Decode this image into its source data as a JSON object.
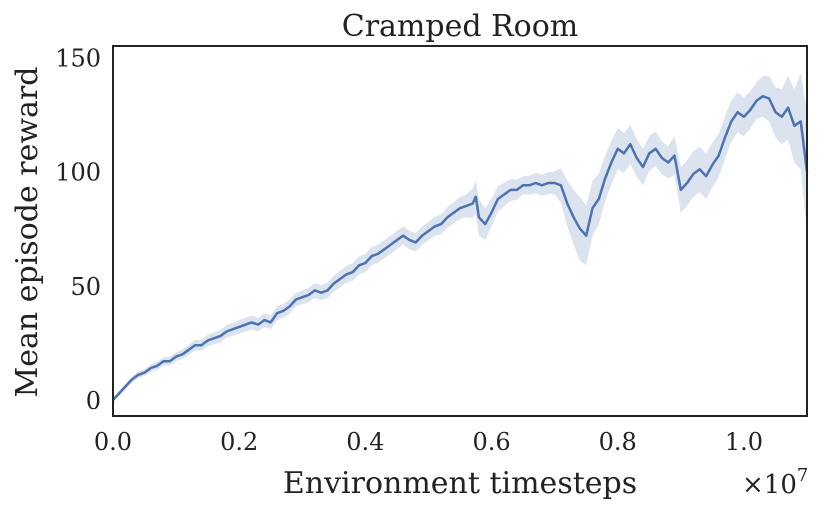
{
  "chart_data": {
    "type": "line",
    "title": "Cramped Room",
    "xlabel": "Environment timesteps",
    "ylabel": "Mean episode reward",
    "x_scale_label_base": "×10",
    "x_scale_label_exp": "7",
    "xlim": [
      0.0,
      1.1
    ],
    "ylim": [
      -7,
      155
    ],
    "xticks": [
      0.0,
      0.2,
      0.4,
      0.6,
      0.8,
      1.0
    ],
    "xtick_labels": [
      "0.0",
      "0.2",
      "0.4",
      "0.6",
      "0.8",
      "1.0"
    ],
    "yticks": [
      0,
      50,
      100,
      150
    ],
    "ytick_labels": [
      "0",
      "50",
      "100",
      "150"
    ],
    "grid": false,
    "series": [
      {
        "color": "#4c72b0",
        "band_color": "#4c72b0",
        "points": [
          [
            0.0,
            0
          ],
          [
            0.01,
            3
          ],
          [
            0.02,
            6
          ],
          [
            0.03,
            9
          ],
          [
            0.04,
            11
          ],
          [
            0.05,
            12
          ],
          [
            0.06,
            14
          ],
          [
            0.07,
            15
          ],
          [
            0.08,
            17
          ],
          [
            0.09,
            17
          ],
          [
            0.1,
            19
          ],
          [
            0.11,
            20
          ],
          [
            0.12,
            22
          ],
          [
            0.13,
            24
          ],
          [
            0.14,
            24
          ],
          [
            0.15,
            26
          ],
          [
            0.16,
            27
          ],
          [
            0.17,
            28
          ],
          [
            0.18,
            30
          ],
          [
            0.19,
            31
          ],
          [
            0.2,
            32
          ],
          [
            0.21,
            33
          ],
          [
            0.22,
            34
          ],
          [
            0.23,
            33
          ],
          [
            0.24,
            35
          ],
          [
            0.25,
            34
          ],
          [
            0.26,
            38
          ],
          [
            0.27,
            39
          ],
          [
            0.28,
            41
          ],
          [
            0.29,
            44
          ],
          [
            0.3,
            45
          ],
          [
            0.31,
            46
          ],
          [
            0.32,
            48
          ],
          [
            0.33,
            47
          ],
          [
            0.34,
            48
          ],
          [
            0.35,
            51
          ],
          [
            0.36,
            53
          ],
          [
            0.37,
            55
          ],
          [
            0.38,
            56
          ],
          [
            0.39,
            59
          ],
          [
            0.4,
            60
          ],
          [
            0.41,
            63
          ],
          [
            0.42,
            64
          ],
          [
            0.43,
            66
          ],
          [
            0.44,
            68
          ],
          [
            0.45,
            70
          ],
          [
            0.46,
            72
          ],
          [
            0.47,
            70
          ],
          [
            0.48,
            69
          ],
          [
            0.49,
            72
          ],
          [
            0.5,
            74
          ],
          [
            0.51,
            76
          ],
          [
            0.52,
            77
          ],
          [
            0.53,
            80
          ],
          [
            0.54,
            82
          ],
          [
            0.55,
            84
          ],
          [
            0.56,
            85
          ],
          [
            0.57,
            86
          ],
          [
            0.575,
            89
          ],
          [
            0.58,
            80
          ],
          [
            0.59,
            77
          ],
          [
            0.6,
            82
          ],
          [
            0.61,
            88
          ],
          [
            0.62,
            90
          ],
          [
            0.63,
            92
          ],
          [
            0.64,
            92
          ],
          [
            0.65,
            94
          ],
          [
            0.66,
            94
          ],
          [
            0.67,
            95
          ],
          [
            0.68,
            94
          ],
          [
            0.69,
            95
          ],
          [
            0.7,
            95
          ],
          [
            0.71,
            94
          ],
          [
            0.72,
            86
          ],
          [
            0.73,
            80
          ],
          [
            0.74,
            75
          ],
          [
            0.75,
            72
          ],
          [
            0.76,
            84
          ],
          [
            0.77,
            88
          ],
          [
            0.78,
            97
          ],
          [
            0.79,
            104
          ],
          [
            0.8,
            110
          ],
          [
            0.81,
            108
          ],
          [
            0.82,
            112
          ],
          [
            0.83,
            106
          ],
          [
            0.84,
            102
          ],
          [
            0.85,
            108
          ],
          [
            0.86,
            110
          ],
          [
            0.87,
            106
          ],
          [
            0.88,
            104
          ],
          [
            0.89,
            107
          ],
          [
            0.9,
            92
          ],
          [
            0.91,
            95
          ],
          [
            0.92,
            99
          ],
          [
            0.93,
            101
          ],
          [
            0.94,
            98
          ],
          [
            0.95,
            103
          ],
          [
            0.96,
            107
          ],
          [
            0.97,
            115
          ],
          [
            0.98,
            122
          ],
          [
            0.99,
            126
          ],
          [
            1.0,
            124
          ],
          [
            1.01,
            127
          ],
          [
            1.02,
            131
          ],
          [
            1.03,
            133
          ],
          [
            1.04,
            132
          ],
          [
            1.05,
            126
          ],
          [
            1.06,
            124
          ],
          [
            1.07,
            128
          ],
          [
            1.08,
            120
          ],
          [
            1.09,
            122
          ],
          [
            1.1,
            100
          ]
        ],
        "band": [
          [
            0.0,
            1
          ],
          [
            0.1,
            2
          ],
          [
            0.2,
            3
          ],
          [
            0.3,
            3
          ],
          [
            0.4,
            4
          ],
          [
            0.5,
            4
          ],
          [
            0.56,
            5
          ],
          [
            0.58,
            8
          ],
          [
            0.6,
            6
          ],
          [
            0.65,
            4
          ],
          [
            0.7,
            5
          ],
          [
            0.72,
            10
          ],
          [
            0.74,
            14
          ],
          [
            0.76,
            12
          ],
          [
            0.78,
            10
          ],
          [
            0.8,
            9
          ],
          [
            0.84,
            8
          ],
          [
            0.88,
            7
          ],
          [
            0.9,
            10
          ],
          [
            0.94,
            10
          ],
          [
            0.98,
            9
          ],
          [
            1.02,
            8
          ],
          [
            1.06,
            12
          ],
          [
            1.08,
            16
          ],
          [
            1.1,
            26
          ]
        ]
      }
    ]
  }
}
